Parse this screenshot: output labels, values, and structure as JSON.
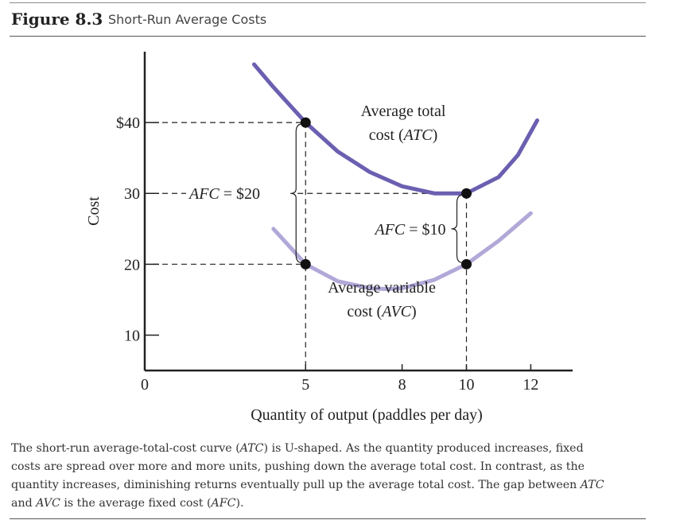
{
  "figure": {
    "label": "Figure 8.3",
    "title": "Short-Run Average Costs"
  },
  "chart_data": {
    "type": "line",
    "xlabel": "Quantity of output (paddles per day)",
    "ylabel": "Cost",
    "xlim": [
      0,
      13.3
    ],
    "ylim": [
      5,
      50
    ],
    "x_ticks": [
      "0",
      "5",
      "8",
      "10",
      "12"
    ],
    "x_tick_values": [
      0,
      5,
      8,
      10,
      12
    ],
    "y_ticks": [
      "10",
      "20",
      "30",
      "$40"
    ],
    "y_tick_values": [
      10,
      20,
      30,
      40
    ],
    "grid": false,
    "series": [
      {
        "name": "Average total cost (ATC)",
        "label_lines": [
          "Average total",
          "cost (ATC)"
        ],
        "color": "#6a5fb0",
        "x": [
          3.4,
          4.0,
          5.0,
          6.0,
          7.0,
          8.0,
          9.0,
          10.0,
          11.0,
          11.6,
          12.2
        ],
        "y": [
          48.2,
          45.0,
          40.0,
          35.9,
          33.0,
          31.0,
          30.0,
          30.0,
          32.3,
          35.4,
          40.3
        ]
      },
      {
        "name": "Average variable cost (AVC)",
        "label_lines": [
          "Average variable",
          "cost (AVC)"
        ],
        "color": "#b2a8d8",
        "x": [
          4.0,
          5.0,
          6.0,
          7.0,
          7.5,
          8.0,
          9.0,
          10.0,
          11.0,
          12.0
        ],
        "y": [
          25.0,
          20.0,
          17.6,
          16.6,
          16.5,
          16.6,
          17.8,
          20.0,
          23.3,
          27.2
        ]
      }
    ],
    "points": [
      {
        "x": 5,
        "y": 40
      },
      {
        "x": 5,
        "y": 20
      },
      {
        "x": 10,
        "y": 30
      },
      {
        "x": 10,
        "y": 20
      }
    ],
    "annotations": [
      {
        "text": "AFC = $20",
        "italic_part": "AFC",
        "rest": " = $20"
      },
      {
        "text": "AFC = $10",
        "italic_part": "AFC",
        "rest": " = $10"
      }
    ]
  },
  "caption": {
    "line1_a": "The short-run average-total-cost curve (",
    "line1_it": "ATC",
    "line1_b": ") is U-shaped. As the quantity produced increases, fixed",
    "line2": "costs are spread over more and more units, pushing down the average total cost. In contrast, as the",
    "line3_a": "quantity increases, diminishing returns eventually pull up the average total cost. The gap between ",
    "line3_it": "ATC",
    "line4_a": "and ",
    "line4_it1": "AVC",
    "line4_b": " is the average fixed cost (",
    "line4_it2": "AFC",
    "line4_c": ")."
  }
}
